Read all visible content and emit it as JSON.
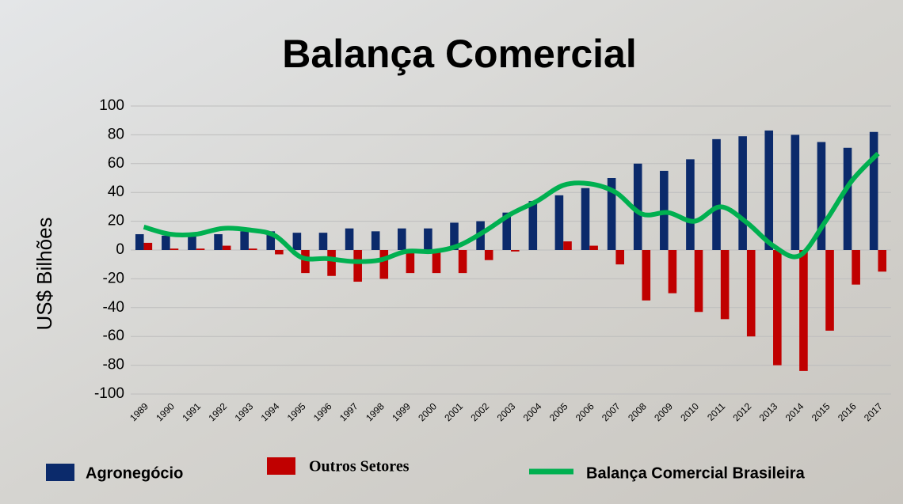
{
  "chart_data": {
    "type": "bar",
    "title": "Balança Comercial",
    "y_label": "US$ Bilhões",
    "categories": [
      "1989",
      "1990",
      "1991",
      "1992",
      "1993",
      "1994",
      "1995",
      "1996",
      "1997",
      "1998",
      "1999",
      "2000",
      "2001",
      "2002",
      "2003",
      "2004",
      "2005",
      "2006",
      "2007",
      "2008",
      "2009",
      "2010",
      "2011",
      "2012",
      "2013",
      "2014",
      "2015",
      "2016",
      "2017"
    ],
    "series": [
      {
        "name": "Agronegócio",
        "color": "#0b2a6b",
        "values": [
          11,
          10,
          10,
          11,
          13,
          13,
          12,
          12,
          15,
          13,
          15,
          15,
          19,
          20,
          26,
          34,
          38,
          43,
          50,
          60,
          55,
          63,
          77,
          79,
          83,
          80,
          75,
          71,
          82
        ]
      },
      {
        "name": "Outros Setores",
        "color": "#c00000",
        "values": [
          5,
          1,
          1,
          3,
          1,
          -3,
          -16,
          -18,
          -22,
          -20,
          -16,
          -16,
          -16,
          -7,
          -1,
          0,
          6,
          3,
          -10,
          -35,
          -30,
          -43,
          -48,
          -60,
          -80,
          -84,
          -56,
          -24,
          -15
        ]
      },
      {
        "name": "Balança Comercial Brasileira",
        "color": "#00b050",
        "type": "line",
        "values": [
          16,
          11,
          11,
          15,
          14,
          10,
          -5,
          -6,
          -8,
          -7,
          -1,
          -1,
          3,
          13,
          25,
          34,
          45,
          46,
          40,
          25,
          26,
          20,
          30,
          19,
          3,
          -4,
          20,
          48,
          67
        ]
      }
    ],
    "ylim": [
      -100,
      100
    ],
    "yticks": [
      -100,
      -80,
      -60,
      -40,
      -20,
      0,
      20,
      40,
      60,
      80,
      100
    ],
    "grid": true
  }
}
